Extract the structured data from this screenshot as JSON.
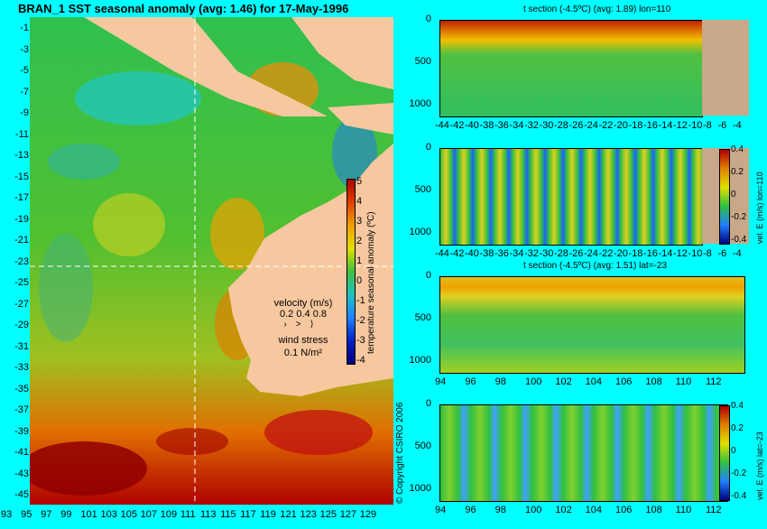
{
  "map": {
    "title": "BRAN_1  SST seasonal anomaly  (avg: 1.46)  for 17-May-1996",
    "lat_labels": [
      "-1",
      "-3",
      "-5",
      "-7",
      "-9",
      "-11",
      "-13",
      "-15",
      "-17",
      "-19",
      "-21",
      "-23",
      "-25",
      "-27",
      "-29",
      "-31",
      "-33",
      "-35",
      "-37",
      "-39",
      "-41",
      "-43",
      "-45"
    ],
    "lon_labels": [
      "93",
      "95",
      "97",
      "99",
      "101",
      "103",
      "105",
      "107",
      "109",
      "111",
      "113",
      "115",
      "117",
      "119",
      "121",
      "123",
      "125",
      "127",
      "129"
    ],
    "colorbar_ticks": [
      "5",
      "4",
      "3",
      "2",
      "1",
      "0",
      "-1",
      "-2",
      "-3",
      "-4"
    ],
    "colorbar_label": "temperature seasonal anomaly (ºC)",
    "velocity_label": "velocity (m/s)",
    "velocity_scale": "0.2 0.4 0.8",
    "wind_label": "wind stress",
    "wind_value": "0.1 N/m²",
    "copyright": "© Copyright CSIRO 2006",
    "colors": {
      "ocean_warm": "#e07010",
      "ocean_cold": "#2a7cff",
      "land": "#f7c8a0",
      "background": "#00ffff"
    }
  },
  "panels": [
    {
      "title": "t section (-4.5ºC) (avg: 1.89) lon=110",
      "y_labels": [
        "0",
        "500",
        "1000"
      ],
      "x_labels": [
        "-44",
        "-42",
        "-40",
        "-38",
        "-36",
        "-34",
        "-32",
        "-30",
        "-28",
        "-26",
        "-24",
        "-22",
        "-20",
        "-18",
        "-16",
        "-14",
        "-12",
        "-10",
        "-8",
        "-6",
        "-4"
      ]
    },
    {
      "title": "",
      "y_labels": [
        "0",
        "500",
        "1000"
      ],
      "x_labels": [
        "-44",
        "-42",
        "-40",
        "-38",
        "-36",
        "-34",
        "-32",
        "-30",
        "-28",
        "-26",
        "-24",
        "-22",
        "-20",
        "-18",
        "-16",
        "-14",
        "-12",
        "-10",
        "-8",
        "-6",
        "-4"
      ],
      "colorbar_ticks": [
        "0.4",
        "0.2",
        "0",
        "-0.2",
        "-0.4"
      ],
      "colorbar_label": "vel. E (m/s) lon=110"
    },
    {
      "title": "t section (-4.5ºC) (avg: 1.51) lat=-23",
      "y_labels": [
        "0",
        "500",
        "1000"
      ],
      "x_labels": [
        "94",
        "96",
        "98",
        "100",
        "102",
        "104",
        "106",
        "108",
        "110",
        "112"
      ]
    },
    {
      "title": "",
      "y_labels": [
        "0",
        "500",
        "1000"
      ],
      "x_labels": [
        "94",
        "96",
        "98",
        "100",
        "102",
        "104",
        "106",
        "108",
        "110",
        "112"
      ],
      "colorbar_ticks": [
        "0.4",
        "0.2",
        "0",
        "-0.2",
        "-0.4"
      ],
      "colorbar_label": "vel. E (m/s) lat=-23"
    }
  ]
}
